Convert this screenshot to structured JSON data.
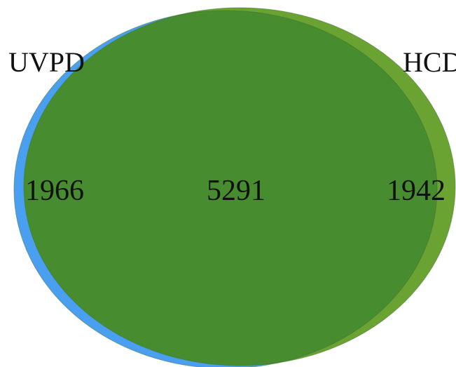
{
  "venn": {
    "sets": [
      {
        "name": "UVPD",
        "unique_count": "1966",
        "color": "#4a9ff0"
      },
      {
        "name": "HCD",
        "unique_count": "1942",
        "color": "#6aa332"
      }
    ],
    "intersection": {
      "count": "5291",
      "color": "#478d2f"
    },
    "edge_color": "#3b6f2a"
  }
}
